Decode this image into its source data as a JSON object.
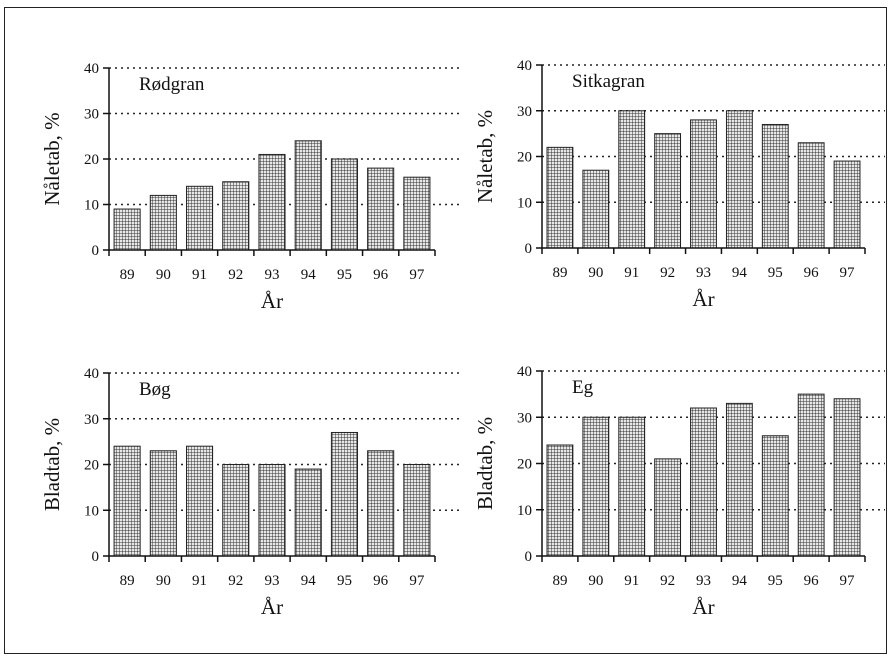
{
  "figure": {
    "background": "#ffffff",
    "bar_fill_pattern": "fine-grid-hatch",
    "bar_color": "#333333"
  },
  "chart_data": [
    {
      "type": "bar",
      "title": "Rødgran",
      "xlabel": "År",
      "ylabel": "Nåletab, %",
      "categories": [
        "89",
        "90",
        "91",
        "92",
        "93",
        "94",
        "95",
        "96",
        "97"
      ],
      "values": [
        9,
        12,
        14,
        15,
        21,
        24,
        20,
        18,
        16
      ],
      "ylim": [
        0,
        40
      ],
      "yticks": [
        "0",
        "10",
        "20",
        "30",
        "40"
      ],
      "grid": "dotted horizontal at 10, 20, 30, 40"
    },
    {
      "type": "bar",
      "title": "Sitkagran",
      "xlabel": "År",
      "ylabel": "Nåletab, %",
      "categories": [
        "89",
        "90",
        "91",
        "92",
        "93",
        "94",
        "95",
        "96",
        "97"
      ],
      "values": [
        22,
        17,
        30,
        25,
        28,
        30,
        27,
        23,
        19
      ],
      "ylim": [
        0,
        40
      ],
      "yticks": [
        "0",
        "10",
        "20",
        "30",
        "40"
      ],
      "grid": "dotted horizontal at 10, 20, 30, 40"
    },
    {
      "type": "bar",
      "title": "Bøg",
      "xlabel": "År",
      "ylabel": "Bladtab, %",
      "categories": [
        "89",
        "90",
        "91",
        "92",
        "93",
        "94",
        "95",
        "96",
        "97"
      ],
      "values": [
        24,
        23,
        24,
        20,
        20,
        19,
        27,
        23,
        20
      ],
      "ylim": [
        0,
        40
      ],
      "yticks": [
        "0",
        "10",
        "20",
        "30",
        "40"
      ],
      "grid": "dotted horizontal at 10, 20, 30, 40"
    },
    {
      "type": "bar",
      "title": "Eg",
      "xlabel": "År",
      "ylabel": "Bladtab, %",
      "categories": [
        "89",
        "90",
        "91",
        "92",
        "93",
        "94",
        "95",
        "96",
        "97"
      ],
      "values": [
        24,
        30,
        30,
        21,
        32,
        33,
        26,
        35,
        34
      ],
      "ylim": [
        0,
        40
      ],
      "yticks": [
        "0",
        "10",
        "20",
        "30",
        "40"
      ],
      "grid": "dotted horizontal at 10, 20, 30, 40"
    }
  ]
}
